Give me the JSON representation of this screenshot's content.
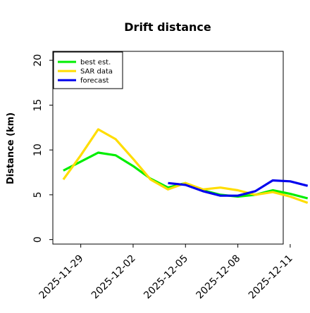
{
  "chart_data": {
    "type": "line",
    "title": "Drift distance",
    "xlabel": "",
    "ylabel": "Distance (km)",
    "ylim": [
      -0.5,
      21.0
    ],
    "yticks": [
      0,
      5,
      10,
      15,
      20
    ],
    "xlim": [
      -0.6,
      12.6
    ],
    "xticks": [
      1,
      4,
      7,
      10,
      13
    ],
    "xtick_labels": [
      "2025-11-29",
      "2025-12-02",
      "2025-12-05",
      "2025-12-08",
      "2025-12-11"
    ],
    "grid": false,
    "legend_position": "top-left",
    "series": [
      {
        "name": "best est.",
        "color": "#00ee00",
        "points": [
          [
            0.0,
            7.7
          ],
          [
            1.0,
            8.7
          ],
          [
            2.0,
            9.7
          ],
          [
            3.0,
            9.4
          ],
          [
            4.0,
            8.2
          ],
          [
            5.0,
            6.8
          ],
          [
            6.0,
            5.8
          ],
          [
            7.0,
            6.3
          ],
          [
            8.0,
            5.5
          ],
          [
            9.0,
            5.0
          ],
          [
            10.0,
            4.8
          ],
          [
            11.0,
            5.0
          ],
          [
            12.0,
            5.5
          ],
          [
            13.0,
            5.1
          ],
          [
            14.0,
            4.6
          ]
        ]
      },
      {
        "name": "SAR data",
        "color": "#ffdd00",
        "points": [
          [
            0.0,
            6.7
          ],
          [
            1.0,
            9.4
          ],
          [
            2.0,
            12.3
          ],
          [
            3.0,
            11.2
          ],
          [
            4.0,
            9.0
          ],
          [
            5.0,
            6.7
          ],
          [
            6.0,
            5.6
          ],
          [
            7.0,
            6.3
          ],
          [
            8.0,
            5.6
          ],
          [
            9.0,
            5.8
          ],
          [
            10.0,
            5.5
          ],
          [
            11.0,
            5.0
          ],
          [
            12.0,
            5.3
          ],
          [
            13.0,
            4.8
          ],
          [
            14.0,
            4.1
          ]
        ]
      },
      {
        "name": "forecast",
        "color": "#0000ee",
        "points": [
          [
            6.0,
            6.3
          ],
          [
            7.0,
            6.1
          ],
          [
            8.0,
            5.4
          ],
          [
            9.0,
            4.9
          ],
          [
            10.0,
            4.9
          ],
          [
            11.0,
            5.4
          ],
          [
            12.0,
            6.6
          ],
          [
            13.0,
            6.5
          ],
          [
            14.0,
            6.0
          ]
        ]
      }
    ]
  }
}
